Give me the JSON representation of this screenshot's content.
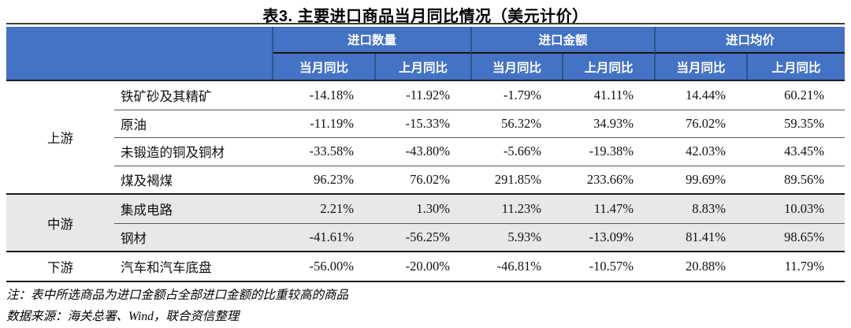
{
  "title": "表3. 主要进口商品当月同比情况（美元计价）",
  "table": {
    "col_groups": [
      "进口数量",
      "进口金额",
      "进口均价"
    ],
    "sub_headers": [
      "当月同比",
      "上月同比",
      "当月同比",
      "上月同比",
      "当月同比",
      "上月同比"
    ],
    "sections": [
      {
        "label": "上游",
        "rows": [
          {
            "name": "铁矿砂及其精矿",
            "values": [
              "-14.18%",
              "-11.92%",
              "-1.79%",
              "41.11%",
              "14.44%",
              "60.21%"
            ]
          },
          {
            "name": "原油",
            "values": [
              "-11.19%",
              "-15.33%",
              "56.32%",
              "34.93%",
              "76.02%",
              "59.35%"
            ]
          },
          {
            "name": "未锻造的铜及铜材",
            "values": [
              "-33.58%",
              "-43.80%",
              "-5.66%",
              "-19.38%",
              "42.03%",
              "43.45%"
            ]
          },
          {
            "name": "煤及褐煤",
            "values": [
              "96.23%",
              "76.02%",
              "291.85%",
              "233.66%",
              "99.69%",
              "89.56%"
            ]
          }
        ]
      },
      {
        "label": "中游",
        "rows": [
          {
            "name": "集成电路",
            "values": [
              "2.21%",
              "1.30%",
              "11.23%",
              "11.47%",
              "8.83%",
              "10.03%"
            ]
          },
          {
            "name": "钢材",
            "values": [
              "-41.61%",
              "-56.25%",
              "5.93%",
              "-13.09%",
              "81.41%",
              "98.65%"
            ]
          }
        ]
      },
      {
        "label": "下游",
        "rows": [
          {
            "name": "汽车和汽车底盘",
            "values": [
              "-56.00%",
              "-20.00%",
              "-46.81%",
              "-10.57%",
              "20.88%",
              "11.79%"
            ]
          }
        ]
      }
    ]
  },
  "notes": {
    "note": "注：表中所选商品为进口金额占全部进口金额的比重较高的商品",
    "source": "数据来源：海关总署、Wind，联合资信整理"
  },
  "colors": {
    "header_bg": "#4472C4",
    "header_divider": "#2F528F",
    "shaded_row_bg": "#E8E8E8",
    "heavy_line": "#1a1a1a",
    "light_line": "#595959"
  }
}
